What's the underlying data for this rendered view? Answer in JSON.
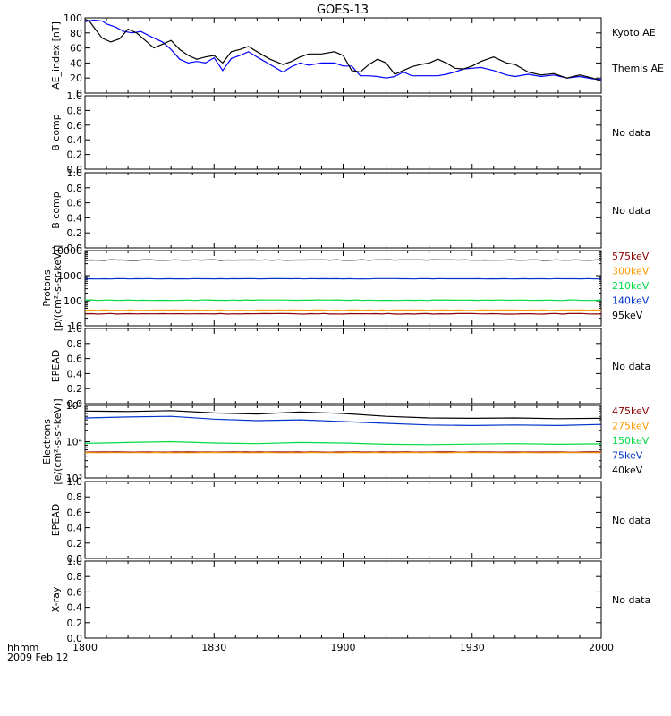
{
  "title": "GOES-13",
  "footer": {
    "label1": "hhmm",
    "label2": "2009 Feb 12"
  },
  "chart_data": [
    {
      "id": "ae",
      "type": "line",
      "ylabel": "AE_index [nT]",
      "ylim": [
        0,
        100
      ],
      "yticks": [
        {
          "v": 0,
          "label": "0"
        },
        {
          "v": 20,
          "label": "20"
        },
        {
          "v": 40,
          "label": "40"
        },
        {
          "v": 60,
          "label": "60"
        },
        {
          "v": 80,
          "label": "80"
        },
        {
          "v": 100,
          "label": "100"
        }
      ],
      "series": [
        {
          "name": "Kyoto AE",
          "color": "#0000ff",
          "x": [
            0,
            2,
            4,
            5,
            7,
            9,
            11,
            13,
            15,
            18,
            20,
            22,
            24,
            26,
            28,
            30,
            32,
            34,
            36,
            38,
            40,
            43,
            46,
            48,
            50,
            52,
            55,
            58,
            60,
            62,
            64,
            66,
            68,
            70,
            72,
            74,
            76,
            78,
            80,
            82,
            84,
            86,
            88,
            90,
            92,
            95,
            98,
            100,
            103,
            106,
            109,
            112,
            115,
            118,
            120
          ],
          "y": [
            95,
            97,
            96,
            92,
            88,
            82,
            80,
            82,
            76,
            68,
            58,
            45,
            40,
            42,
            40,
            47,
            30,
            46,
            50,
            55,
            48,
            38,
            28,
            35,
            40,
            37,
            40,
            40,
            36,
            36,
            23,
            23,
            22,
            20,
            22,
            28,
            23,
            23,
            23,
            23,
            25,
            28,
            32,
            33,
            34,
            30,
            24,
            22,
            25,
            22,
            24,
            20,
            22,
            19,
            18
          ]
        },
        {
          "name": "Themis AE",
          "color": "#000000",
          "x": [
            0,
            1,
            2,
            4,
            6,
            8,
            10,
            12,
            14,
            16,
            18,
            20,
            22,
            24,
            26,
            28,
            30,
            32,
            34,
            36,
            38,
            40,
            43,
            46,
            48,
            50,
            52,
            55,
            58,
            60,
            62,
            64,
            66,
            68,
            70,
            72,
            74,
            76,
            78,
            80,
            82,
            84,
            86,
            88,
            90,
            92,
            95,
            98,
            100,
            103,
            106,
            109,
            112,
            115,
            118,
            120
          ],
          "y": [
            98,
            96,
            88,
            73,
            68,
            72,
            85,
            80,
            70,
            60,
            65,
            70,
            58,
            50,
            45,
            48,
            50,
            40,
            55,
            58,
            62,
            55,
            45,
            38,
            42,
            48,
            52,
            52,
            55,
            50,
            30,
            28,
            38,
            45,
            40,
            25,
            30,
            35,
            38,
            40,
            45,
            40,
            33,
            32,
            36,
            42,
            48,
            40,
            38,
            28,
            24,
            26,
            20,
            24,
            20,
            16
          ]
        }
      ]
    },
    {
      "id": "b1",
      "type": "line",
      "ylabel": "B comp",
      "ylim": [
        0,
        1
      ],
      "yticks": [
        {
          "v": 0,
          "label": "0.0"
        },
        {
          "v": 0.2,
          "label": "0.2"
        },
        {
          "v": 0.4,
          "label": "0.4"
        },
        {
          "v": 0.6,
          "label": "0.6"
        },
        {
          "v": 0.8,
          "label": "0.8"
        },
        {
          "v": 1.0,
          "label": "1.0"
        }
      ],
      "note": "No data",
      "series": []
    },
    {
      "id": "b2",
      "type": "line",
      "ylabel": "B comp",
      "ylim": [
        0,
        1
      ],
      "yticks": [
        {
          "v": 0,
          "label": "0.0"
        },
        {
          "v": 0.2,
          "label": "0.2"
        },
        {
          "v": 0.4,
          "label": "0.4"
        },
        {
          "v": 0.6,
          "label": "0.6"
        },
        {
          "v": 0.8,
          "label": "0.8"
        },
        {
          "v": 1.0,
          "label": "1.0"
        }
      ],
      "note": "No data",
      "series": []
    },
    {
      "id": "protons",
      "type": "line",
      "scale": "log",
      "ylabel": "Protons",
      "ylabel2": "[p/(cm²-s-sr-keV)]",
      "ylim": [
        10,
        10000
      ],
      "yticks": [
        {
          "v": 10,
          "label": "10"
        },
        {
          "v": 100,
          "label": "100"
        },
        {
          "v": 1000,
          "label": "1000"
        },
        {
          "v": 10000,
          "label": "10000"
        }
      ],
      "series": [
        {
          "name": "575keV",
          "color": "#8b0000",
          "level": 30,
          "noise": 0.03
        },
        {
          "name": "300keV",
          "color": "#ff9900",
          "level": 42,
          "noise": 0.03
        },
        {
          "name": "210keV",
          "color": "#00dd44",
          "level": 105,
          "noise": 0.03
        },
        {
          "name": "140keV",
          "color": "#0033cc",
          "level": 750,
          "noise": 0.02
        },
        {
          "name": "95keV",
          "color": "#000000",
          "level": 4200,
          "noise": 0.03
        }
      ]
    },
    {
      "id": "epead1",
      "type": "line",
      "ylabel": "EPEAD",
      "ylim": [
        0,
        1
      ],
      "yticks": [
        {
          "v": 0,
          "label": "0.0"
        },
        {
          "v": 0.2,
          "label": "0.2"
        },
        {
          "v": 0.4,
          "label": "0.4"
        },
        {
          "v": 0.6,
          "label": "0.6"
        },
        {
          "v": 0.8,
          "label": "0.8"
        },
        {
          "v": 1.0,
          "label": "1.0"
        }
      ],
      "note": "No data",
      "series": []
    },
    {
      "id": "electrons",
      "type": "line",
      "scale": "log",
      "ylabel": "Electrons",
      "ylabel2": "[e/(cm²-s-sr-keV)]",
      "ylim": [
        1000,
        100000
      ],
      "yticks": [
        {
          "v": 1000,
          "label": "10³"
        },
        {
          "v": 10000,
          "label": "10⁴"
        },
        {
          "v": 100000,
          "label": "10⁵"
        }
      ],
      "series": [
        {
          "name": "475keV",
          "color": "#8b0000",
          "level": 5200,
          "noise": 0.01
        },
        {
          "name": "275keV",
          "color": "#ff9900",
          "level": 5000,
          "noise": 0.01
        },
        {
          "name": "150keV",
          "color": "#00dd44",
          "x": [
            0,
            10,
            20,
            30,
            40,
            50,
            60,
            70,
            80,
            90,
            100,
            110,
            120
          ],
          "y": [
            9000,
            9500,
            10000,
            9200,
            8800,
            9500,
            9200,
            8500,
            8300,
            8600,
            8800,
            8500,
            8700
          ]
        },
        {
          "name": "75keV",
          "color": "#0033cc",
          "x": [
            0,
            10,
            20,
            30,
            40,
            50,
            60,
            70,
            80,
            90,
            100,
            110,
            120
          ],
          "y": [
            45000,
            48000,
            50000,
            42000,
            38000,
            40000,
            36000,
            32000,
            29000,
            28000,
            29000,
            28000,
            30000
          ]
        },
        {
          "name": "40keV",
          "color": "#000000",
          "x": [
            0,
            10,
            20,
            30,
            40,
            50,
            60,
            70,
            80,
            90,
            100,
            110,
            120
          ],
          "y": [
            70000,
            68000,
            72000,
            62000,
            58000,
            66000,
            60000,
            50000,
            45000,
            44000,
            45000,
            43000,
            44000
          ]
        }
      ]
    },
    {
      "id": "epead2",
      "type": "line",
      "ylabel": "EPEAD",
      "ylim": [
        0,
        1
      ],
      "yticks": [
        {
          "v": 0,
          "label": "0.0"
        },
        {
          "v": 0.2,
          "label": "0.2"
        },
        {
          "v": 0.4,
          "label": "0.4"
        },
        {
          "v": 0.6,
          "label": "0.6"
        },
        {
          "v": 0.8,
          "label": "0.8"
        },
        {
          "v": 1.0,
          "label": "1.0"
        }
      ],
      "note": "No data",
      "series": []
    },
    {
      "id": "xray",
      "type": "line",
      "ylabel": "X-ray",
      "ylim": [
        0,
        1
      ],
      "yticks": [
        {
          "v": 0,
          "label": "0.0"
        },
        {
          "v": 0.2,
          "label": "0.2"
        },
        {
          "v": 0.4,
          "label": "0.4"
        },
        {
          "v": 0.6,
          "label": "0.6"
        },
        {
          "v": 0.8,
          "label": "0.8"
        },
        {
          "v": 1.0,
          "label": "1.0"
        }
      ],
      "note": "No data",
      "series": []
    }
  ],
  "xaxis": {
    "xlim": [
      0,
      120
    ],
    "ticks": [
      {
        "v": 0,
        "label": "1800"
      },
      {
        "v": 30,
        "label": "1830"
      },
      {
        "v": 60,
        "label": "1900"
      },
      {
        "v": 90,
        "label": "1930"
      },
      {
        "v": 120,
        "label": "2000"
      }
    ]
  }
}
